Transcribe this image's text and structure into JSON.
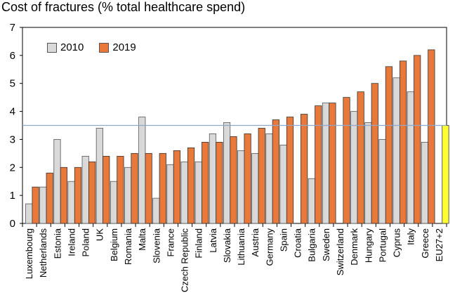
{
  "chart_data": {
    "type": "bar",
    "title": "Cost of fractures (% total healthcare spend)",
    "ylim": [
      0,
      7
    ],
    "yticks": [
      0,
      1,
      2,
      3,
      4,
      5,
      6,
      7
    ],
    "grid": false,
    "legend_position": "top-left",
    "reference_line": 3.5,
    "categories": [
      "Luxembourg",
      "Netherlands",
      "Estonia",
      "Ireland",
      "Poland",
      "UK",
      "Belgium",
      "Romania",
      "Malta",
      "Slovenia",
      "France",
      "Czech Republic",
      "Finland",
      "Latvia",
      "Slovakia",
      "Lithuania",
      "Austria",
      "Germany",
      "Spain",
      "Croatia",
      "Bulgaria",
      "Sweden",
      "Switzerland",
      "Denmark",
      "Hungary",
      "Portugal",
      "Cyprus",
      "Italy",
      "Greece",
      "EU27+2"
    ],
    "series": [
      {
        "name": "2010",
        "color": "#d9d9d9",
        "values": [
          0.7,
          1.3,
          3.0,
          1.5,
          2.4,
          3.4,
          1.5,
          2.0,
          3.8,
          0.9,
          2.1,
          2.2,
          2.2,
          3.2,
          3.6,
          2.6,
          2.5,
          3.2,
          2.8,
          null,
          1.6,
          4.3,
          null,
          4.0,
          3.6,
          3.0,
          5.2,
          4.7,
          2.9,
          null
        ]
      },
      {
        "name": "2019",
        "color": "#e8793a",
        "values": [
          1.3,
          1.8,
          2.0,
          2.0,
          2.2,
          2.4,
          2.4,
          2.5,
          2.5,
          2.5,
          2.6,
          2.7,
          2.9,
          2.9,
          3.1,
          3.2,
          3.4,
          3.7,
          3.8,
          3.9,
          4.2,
          4.3,
          4.5,
          4.7,
          5.0,
          5.6,
          5.8,
          6.0,
          6.2,
          3.5
        ]
      }
    ],
    "highlight": {
      "category": "EU27+2",
      "color": "#ffff33"
    }
  }
}
